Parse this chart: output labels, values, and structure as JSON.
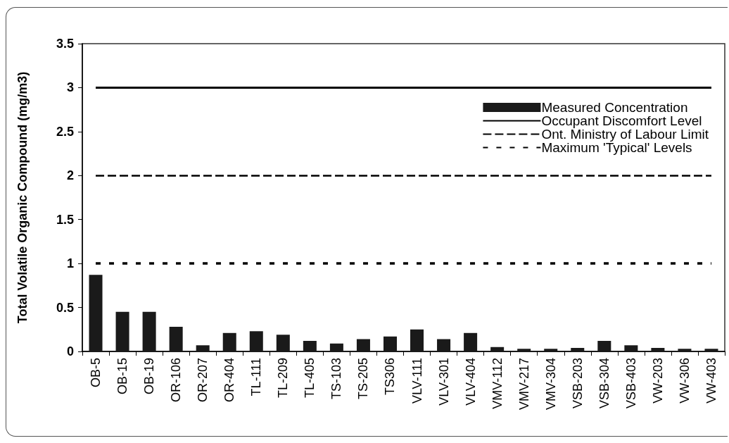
{
  "chart_data": {
    "type": "bar",
    "categories": [
      "OB-5",
      "OB-15",
      "OB-19",
      "OR-106",
      "OR-207",
      "OR-404",
      "TL-111",
      "TL-209",
      "TL-405",
      "TS-103",
      "TS-205",
      "TS306",
      "VLV-111",
      "VLV-301",
      "VLV-404",
      "VMV-112",
      "VMV-217",
      "VMV-304",
      "VSB-203",
      "VSB-304",
      "VSB-403",
      "VW-203",
      "VW-306",
      "VW-403"
    ],
    "series": [
      {
        "name": "Measured Concentration",
        "color": "#1a1a1a",
        "values": [
          0.87,
          0.45,
          0.45,
          0.28,
          0.07,
          0.21,
          0.23,
          0.19,
          0.12,
          0.09,
          0.14,
          0.17,
          0.25,
          0.14,
          0.21,
          0.05,
          0.03,
          0.03,
          0.04,
          0.12,
          0.07,
          0.04,
          0.03,
          0.03
        ]
      }
    ],
    "ylabel": "Total Volatile Organic Compound (mg/m3)",
    "ylim": [
      0,
      3.5
    ],
    "yticks": [
      0,
      0.5,
      1,
      1.5,
      2,
      2.5,
      3,
      3.5
    ],
    "ref_lines": [
      {
        "axis": "y",
        "value": 3,
        "label": "Occupant Discomfort Level",
        "line_style": "solid",
        "color": "#000000"
      },
      {
        "axis": "y",
        "value": 2,
        "label": "Ont. Ministry of Labour Limit",
        "line_style": "dashed",
        "color": "#000000"
      },
      {
        "axis": "y",
        "value": 1,
        "label": "Maximum 'Typical' Levels",
        "line_style": "dotted",
        "color": "#000000"
      }
    ],
    "grid": false,
    "legend": "top right"
  }
}
